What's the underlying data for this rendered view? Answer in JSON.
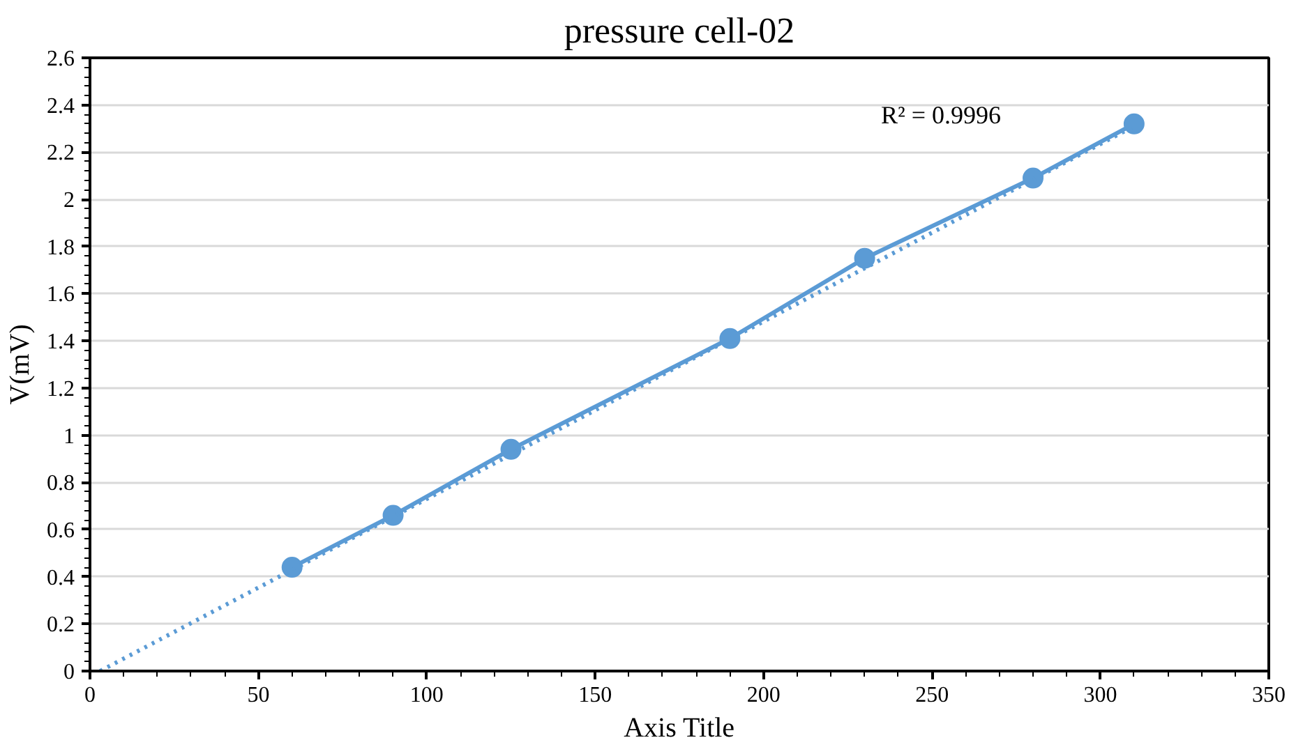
{
  "chart_data": {
    "type": "line",
    "title": "pressure cell-02",
    "xlabel": "Axis Title",
    "ylabel": "V(mV)",
    "series": [
      {
        "color": "#5b9bd5",
        "marker": "circle",
        "line_style": "solid",
        "x": [
          60,
          90,
          125,
          190,
          230,
          280,
          310
        ],
        "values": [
          0.44,
          0.66,
          0.94,
          1.41,
          1.75,
          2.09,
          2.32
        ]
      },
      {
        "color": "#5b9bd5",
        "marker": "none",
        "line_style": "dotted",
        "x": [
          3,
          310
        ],
        "values": [
          0,
          2.31
        ]
      }
    ],
    "annotations": [
      "R² = 0.9996"
    ],
    "xlim": [
      0,
      350
    ],
    "xticks": [
      0,
      50,
      100,
      150,
      200,
      250,
      300,
      350
    ],
    "ylim": [
      0,
      2.6
    ],
    "yticks": [
      0,
      0.2,
      0.4,
      0.6,
      0.8,
      1,
      1.2,
      1.4,
      1.6,
      1.8,
      2,
      2.2,
      2.4,
      2.6
    ],
    "grid": "y"
  }
}
